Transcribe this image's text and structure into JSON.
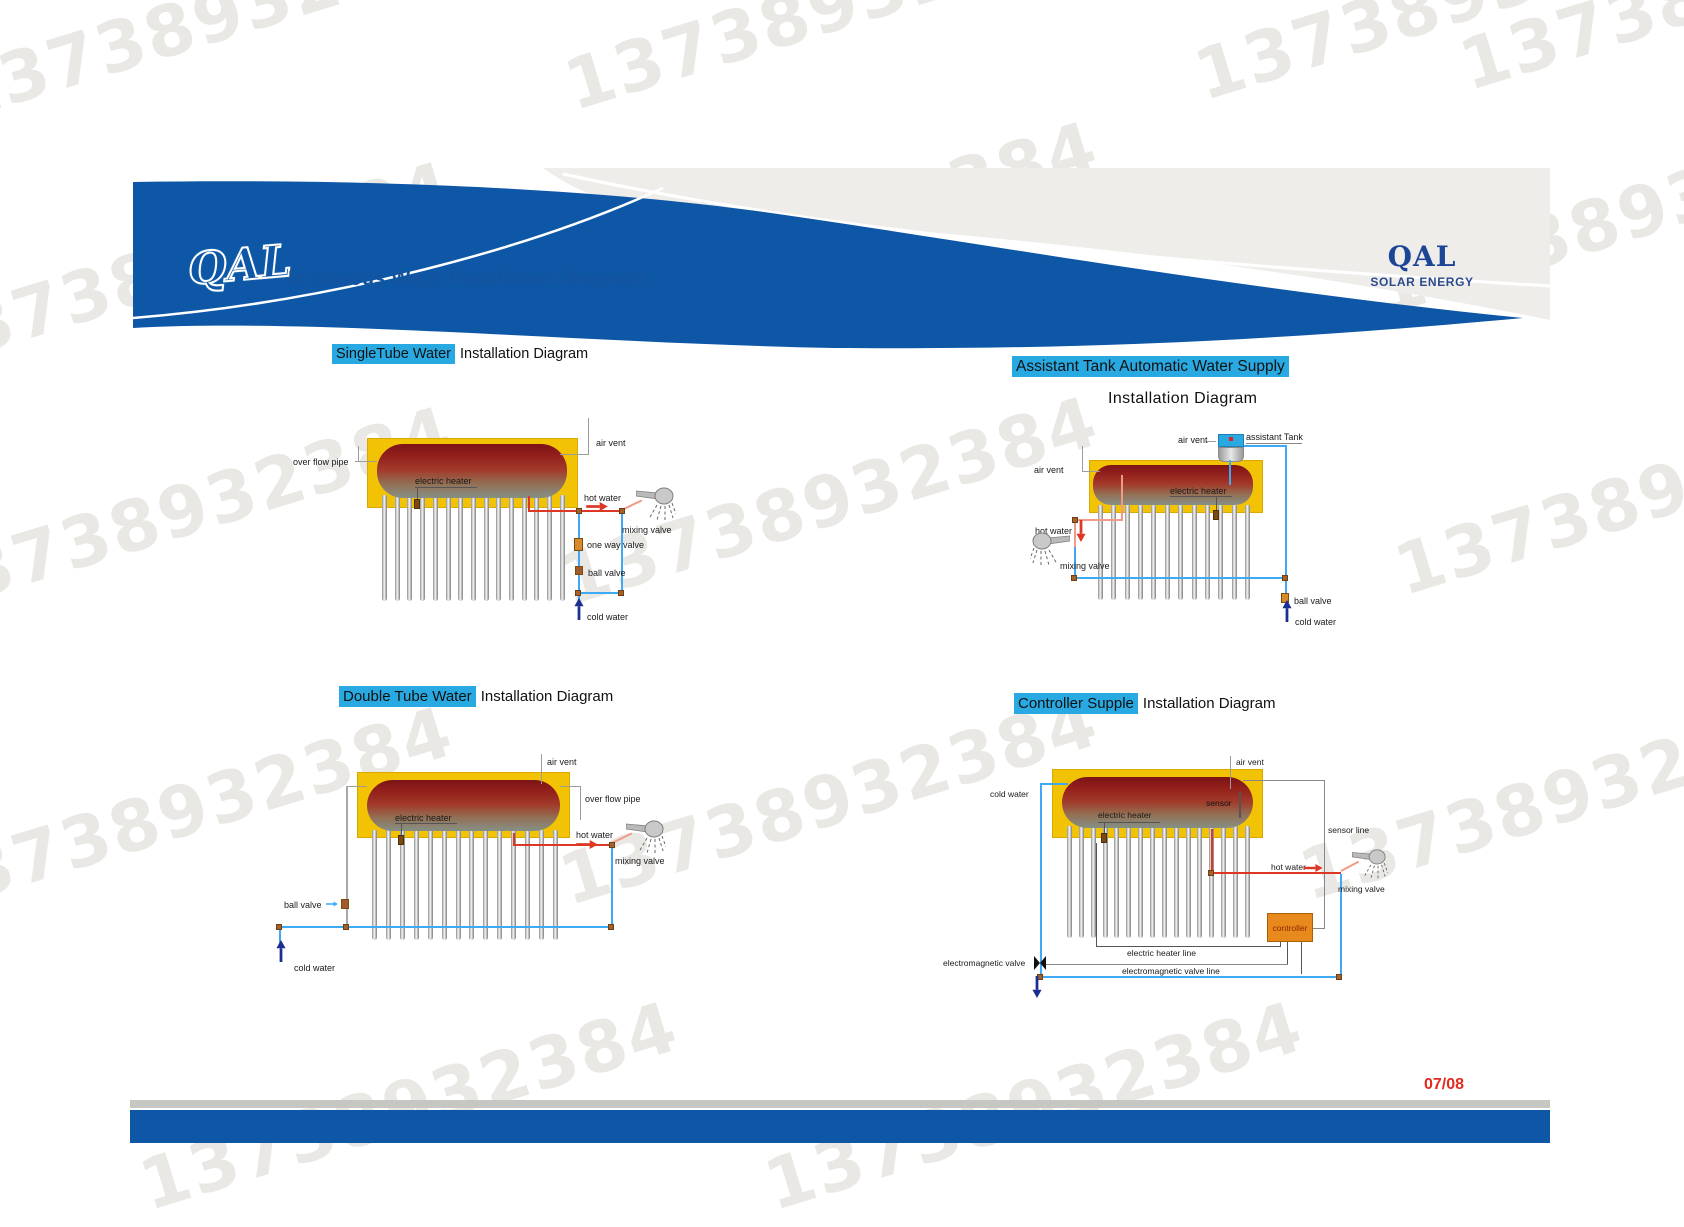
{
  "watermark": {
    "text": "13738932384"
  },
  "header": {
    "logo": "QAL",
    "title": "In Various Ways Installation Diagram",
    "brand_name": "QAL",
    "brand_subtitle": "SOLAR ENERGY"
  },
  "panels": [
    {
      "title_highlight": "SingleTube Water",
      "title_rest": "Installation Diagram",
      "labels": {
        "over_flow_pipe": "over flow pipe",
        "air_vent": "air vent",
        "electric_heater": "electric heater",
        "hot_water": "hot water",
        "mixing_valve": "mixing valve",
        "one_way_valve": "one way valve",
        "ball_valve": "ball valve",
        "cold_water": "cold water"
      }
    },
    {
      "title_highlight": "Assistant Tank Automatic Water Supply",
      "title_rest": "Installation Diagram",
      "labels": {
        "air_vent_top": "air vent",
        "assistant_tank": "assistant Tank",
        "air_vent_left": "air vent",
        "electric_heater": "electric heater",
        "hot_water": "hot water",
        "mixing_valve": "mixing valve",
        "ball_valve": "ball valve",
        "cold_water": "cold water"
      }
    },
    {
      "title_highlight": "Double Tube Water",
      "title_rest": "Installation Diagram",
      "labels": {
        "air_vent": "air vent",
        "over_flow_pipe": "over flow pipe",
        "electric_heater": "electric heater",
        "hot_water": "hot water",
        "mixing_valve": "mixing valve",
        "ball_valve": "ball valve",
        "cold_water": "cold water"
      }
    },
    {
      "title_highlight": "Controller Supple",
      "title_rest": "Installation Diagram",
      "labels": {
        "air_vent": "air vent",
        "cold_water": "cold water",
        "sensor": "sensor",
        "electric_heater": "electric heater",
        "sensor_line": "sensor line",
        "hot_water": "hot water",
        "mixing_valve": "mixing valve",
        "controller": "controller",
        "electric_heater_line": "electric heater line",
        "electromagnetic_valve": "electromagnetic valve",
        "electromagnetic_valve_line": "electromagnetic valve line"
      }
    }
  ],
  "footer": {
    "page_number": "07/08"
  },
  "colors": {
    "header_blue": "#0d57a6",
    "highlight_cyan": "#29a9e1",
    "collector_yellow": "#f2c204",
    "pipe_blue": "#3fa9f5",
    "pipe_red": "#dd3826",
    "controller_orange": "#e8891d",
    "page_number_red": "#e02b20",
    "footer_bar_blue": "#0d57a6",
    "footer_bar_gray": "#c6c6c2"
  }
}
